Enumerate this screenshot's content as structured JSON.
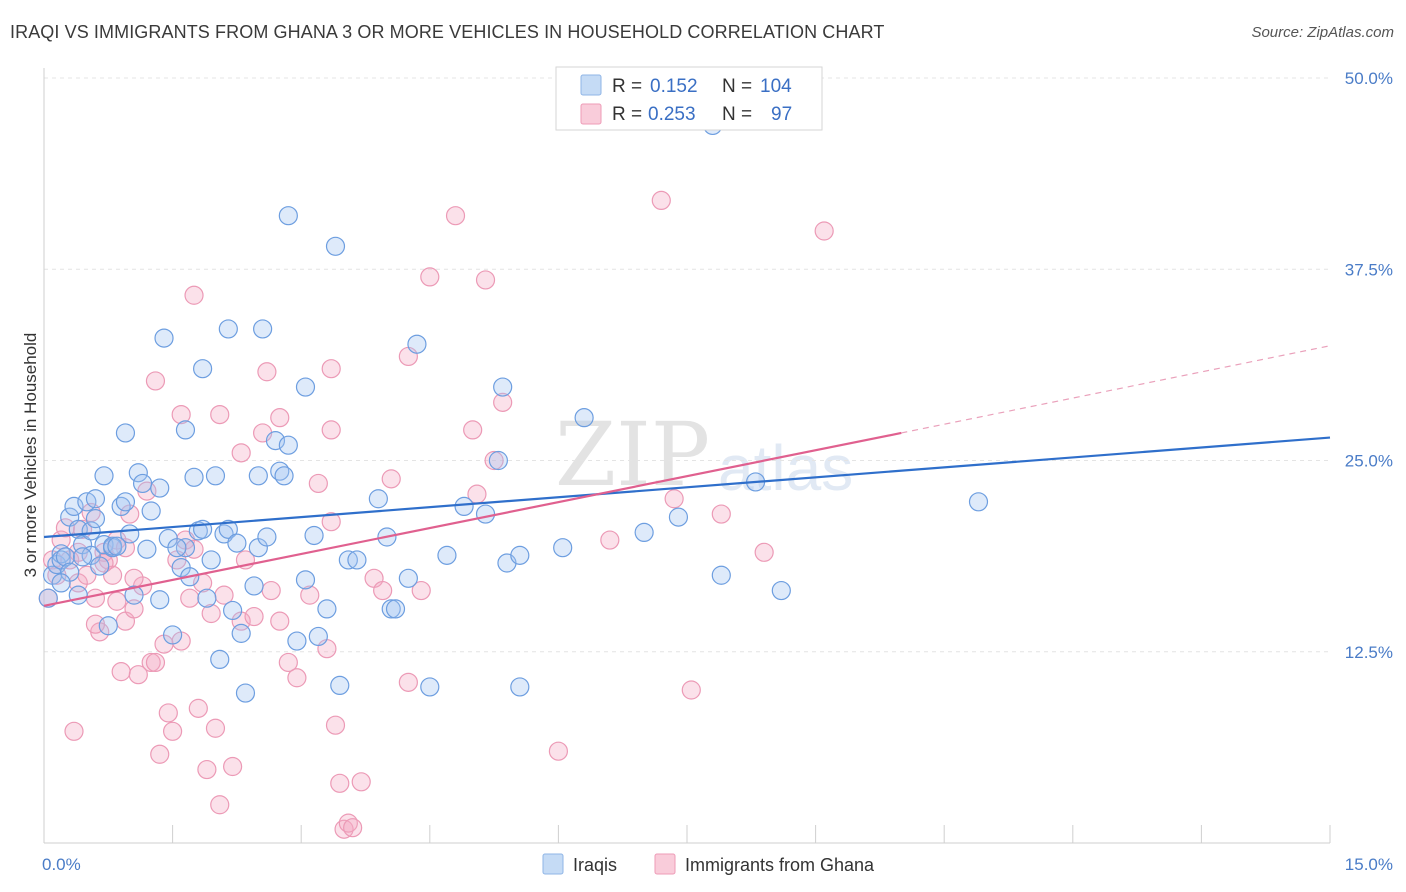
{
  "title": "IRAQI VS IMMIGRANTS FROM GHANA 3 OR MORE VEHICLES IN HOUSEHOLD CORRELATION CHART",
  "source": "Source: ZipAtlas.com",
  "watermark": {
    "zip": "ZIP",
    "atlas": "atlas"
  },
  "legend": {
    "rows": [
      {
        "r_label": "R =",
        "r_value": "0.152",
        "n_label": "N =",
        "n_value": "104",
        "color": "#a9c8ef"
      },
      {
        "r_label": "R =",
        "r_value": "0.253",
        "n_label": "N =",
        "n_value": "97",
        "color": "#f5b8cb"
      }
    ]
  },
  "bottom_legend": [
    {
      "label": "Iraqis",
      "color": "#a9c8ef"
    },
    {
      "label": "Immigrants from Ghana",
      "color": "#f5b8cb"
    }
  ],
  "chart_data": {
    "type": "scatter",
    "title": "IRAQI VS IMMIGRANTS FROM GHANA 3 OR MORE VEHICLES IN HOUSEHOLD CORRELATION CHART",
    "xlabel": "",
    "ylabel": "3 or more Vehicles in Household",
    "xlim": [
      0,
      15
    ],
    "ylim": [
      0,
      50
    ],
    "x_tick_labels": [
      "0.0%",
      "15.0%"
    ],
    "y_tick_labels": [
      "12.5%",
      "25.0%",
      "37.5%",
      "50.0%"
    ],
    "y_ticks": [
      12.5,
      25,
      37.5,
      50
    ],
    "grid": true,
    "legend_position": "top-center",
    "colors": {
      "iraqis": "#4a86d4",
      "ghana": "#e57aa0",
      "iraqis_line": "#2f6fcb",
      "ghana_line": "#e0608f"
    },
    "series": [
      {
        "name": "Iraqis",
        "r": 0.152,
        "n": 104,
        "trend": {
          "x": [
            0,
            15
          ],
          "y": [
            20.0,
            26.5
          ]
        },
        "points": [
          [
            0.05,
            16.0
          ],
          [
            0.1,
            17.5
          ],
          [
            0.15,
            18.2
          ],
          [
            0.2,
            18.9
          ],
          [
            0.2,
            18.5
          ],
          [
            0.25,
            18.7
          ],
          [
            0.3,
            21.3
          ],
          [
            0.35,
            22.0
          ],
          [
            0.4,
            20.5
          ],
          [
            0.45,
            19.5
          ],
          [
            0.5,
            22.3
          ],
          [
            0.55,
            18.8
          ],
          [
            0.6,
            22.5
          ],
          [
            0.7,
            24.0
          ],
          [
            0.7,
            19.5
          ],
          [
            0.8,
            19.3
          ],
          [
            0.8,
            19.4
          ],
          [
            0.9,
            22.0
          ],
          [
            0.95,
            22.3
          ],
          [
            1.0,
            20.2
          ],
          [
            1.1,
            24.2
          ],
          [
            1.15,
            23.5
          ],
          [
            1.2,
            19.2
          ],
          [
            1.25,
            21.7
          ],
          [
            1.35,
            23.2
          ],
          [
            1.5,
            13.6
          ],
          [
            1.6,
            18.0
          ],
          [
            1.65,
            19.3
          ],
          [
            1.7,
            17.4
          ],
          [
            1.75,
            23.9
          ],
          [
            1.8,
            20.4
          ],
          [
            1.85,
            20.5
          ],
          [
            1.95,
            18.5
          ],
          [
            2.0,
            24.0
          ],
          [
            2.05,
            12.0
          ],
          [
            2.1,
            20.2
          ],
          [
            2.15,
            20.5
          ],
          [
            2.2,
            15.2
          ],
          [
            2.3,
            13.7
          ],
          [
            2.35,
            9.8
          ],
          [
            2.5,
            19.3
          ],
          [
            2.6,
            20.0
          ],
          [
            2.7,
            26.3
          ],
          [
            2.75,
            24.3
          ],
          [
            2.8,
            24.0
          ],
          [
            2.85,
            26.0
          ],
          [
            3.05,
            17.2
          ],
          [
            3.15,
            20.1
          ],
          [
            3.2,
            13.5
          ],
          [
            3.3,
            15.3
          ],
          [
            3.45,
            10.3
          ],
          [
            3.55,
            18.5
          ],
          [
            3.65,
            18.5
          ],
          [
            3.9,
            22.5
          ],
          [
            4.0,
            20.0
          ],
          [
            4.05,
            15.3
          ],
          [
            4.1,
            15.3
          ],
          [
            4.25,
            17.3
          ],
          [
            4.5,
            10.2
          ],
          [
            4.7,
            18.8
          ],
          [
            4.9,
            22.0
          ],
          [
            5.15,
            21.5
          ],
          [
            5.3,
            25.0
          ],
          [
            5.4,
            18.3
          ],
          [
            5.35,
            29.8
          ],
          [
            5.55,
            10.2
          ],
          [
            5.55,
            18.8
          ],
          [
            6.05,
            19.3
          ],
          [
            6.3,
            27.8
          ],
          [
            7.0,
            20.3
          ],
          [
            7.8,
            46.9
          ],
          [
            7.4,
            21.3
          ],
          [
            7.9,
            17.5
          ],
          [
            8.3,
            23.6
          ],
          [
            8.6,
            16.5
          ],
          [
            10.9,
            22.3
          ],
          [
            2.85,
            41.0
          ],
          [
            3.4,
            39.0
          ],
          [
            1.4,
            33.0
          ],
          [
            2.15,
            33.6
          ],
          [
            2.55,
            33.6
          ],
          [
            4.35,
            32.6
          ],
          [
            1.85,
            31.0
          ],
          [
            3.05,
            29.8
          ],
          [
            0.95,
            26.8
          ],
          [
            1.65,
            27.0
          ],
          [
            2.5,
            24.0
          ],
          [
            0.3,
            17.7
          ],
          [
            0.45,
            18.7
          ],
          [
            0.2,
            17.0
          ],
          [
            0.55,
            20.4
          ],
          [
            1.05,
            16.2
          ],
          [
            1.45,
            19.9
          ],
          [
            1.55,
            19.3
          ],
          [
            0.6,
            21.2
          ],
          [
            0.85,
            19.4
          ],
          [
            0.75,
            14.2
          ],
          [
            1.35,
            15.9
          ],
          [
            2.25,
            19.6
          ],
          [
            2.45,
            16.8
          ],
          [
            2.95,
            13.2
          ],
          [
            0.4,
            16.2
          ],
          [
            0.65,
            18.1
          ],
          [
            1.9,
            16.0
          ]
        ]
      },
      {
        "name": "Immigrants from Ghana",
        "r": 0.253,
        "n": 97,
        "trend": {
          "x": [
            0,
            10
          ],
          "y": [
            15.5,
            26.8
          ]
        },
        "trend_dashed": {
          "x": [
            10,
            15
          ],
          "y": [
            26.8,
            32.5
          ]
        },
        "points": [
          [
            0.05,
            16.0
          ],
          [
            0.1,
            18.5
          ],
          [
            0.15,
            17.5
          ],
          [
            0.2,
            19.8
          ],
          [
            0.25,
            20.6
          ],
          [
            0.3,
            18.5
          ],
          [
            0.35,
            7.3
          ],
          [
            0.4,
            17.0
          ],
          [
            0.45,
            20.5
          ],
          [
            0.5,
            17.5
          ],
          [
            0.55,
            21.6
          ],
          [
            0.6,
            16.0
          ],
          [
            0.65,
            13.8
          ],
          [
            0.7,
            19.0
          ],
          [
            0.75,
            18.5
          ],
          [
            0.8,
            17.5
          ],
          [
            0.85,
            15.8
          ],
          [
            0.9,
            11.2
          ],
          [
            0.95,
            14.5
          ],
          [
            1.0,
            21.5
          ],
          [
            1.05,
            15.3
          ],
          [
            1.1,
            11.0
          ],
          [
            1.15,
            16.8
          ],
          [
            1.2,
            23.0
          ],
          [
            1.25,
            11.8
          ],
          [
            1.3,
            11.8
          ],
          [
            1.35,
            5.8
          ],
          [
            1.4,
            13.0
          ],
          [
            1.45,
            8.5
          ],
          [
            1.5,
            7.3
          ],
          [
            1.55,
            18.5
          ],
          [
            1.6,
            13.2
          ],
          [
            1.65,
            19.8
          ],
          [
            1.7,
            16.0
          ],
          [
            1.75,
            19.2
          ],
          [
            1.8,
            8.8
          ],
          [
            1.85,
            17.0
          ],
          [
            1.9,
            4.8
          ],
          [
            1.95,
            15.0
          ],
          [
            2.0,
            7.5
          ],
          [
            2.05,
            2.5
          ],
          [
            2.1,
            16.2
          ],
          [
            2.2,
            5.0
          ],
          [
            2.3,
            14.5
          ],
          [
            2.35,
            18.5
          ],
          [
            2.45,
            14.8
          ],
          [
            2.55,
            26.8
          ],
          [
            2.65,
            16.5
          ],
          [
            2.75,
            14.5
          ],
          [
            2.85,
            11.8
          ],
          [
            2.95,
            10.8
          ],
          [
            3.1,
            16.2
          ],
          [
            3.2,
            23.5
          ],
          [
            3.3,
            12.7
          ],
          [
            3.35,
            21.0
          ],
          [
            3.4,
            7.7
          ],
          [
            3.45,
            3.9
          ],
          [
            3.5,
            0.9
          ],
          [
            3.55,
            1.3
          ],
          [
            3.6,
            1.0
          ],
          [
            3.7,
            4.0
          ],
          [
            3.85,
            17.3
          ],
          [
            3.95,
            16.5
          ],
          [
            4.05,
            23.8
          ],
          [
            4.25,
            10.5
          ],
          [
            4.4,
            16.5
          ],
          [
            4.5,
            37.0
          ],
          [
            4.8,
            41.0
          ],
          [
            5.0,
            27.0
          ],
          [
            5.05,
            22.8
          ],
          [
            5.15,
            36.8
          ],
          [
            5.25,
            25.0
          ],
          [
            5.35,
            28.8
          ],
          [
            6.0,
            6.0
          ],
          [
            6.6,
            19.8
          ],
          [
            7.2,
            42.0
          ],
          [
            7.35,
            22.5
          ],
          [
            7.55,
            10.0
          ],
          [
            7.9,
            21.5
          ],
          [
            8.4,
            19.0
          ],
          [
            9.1,
            40.0
          ],
          [
            1.75,
            35.8
          ],
          [
            4.25,
            31.8
          ],
          [
            2.6,
            30.8
          ],
          [
            3.35,
            31.0
          ],
          [
            1.3,
            30.2
          ],
          [
            2.05,
            28.0
          ],
          [
            2.75,
            27.8
          ],
          [
            3.35,
            27.0
          ],
          [
            1.6,
            28.0
          ],
          [
            2.3,
            25.5
          ],
          [
            0.85,
            19.8
          ],
          [
            0.6,
            14.3
          ],
          [
            1.05,
            17.3
          ],
          [
            0.95,
            19.3
          ],
          [
            0.7,
            18.3
          ],
          [
            0.4,
            19.0
          ]
        ]
      }
    ]
  }
}
